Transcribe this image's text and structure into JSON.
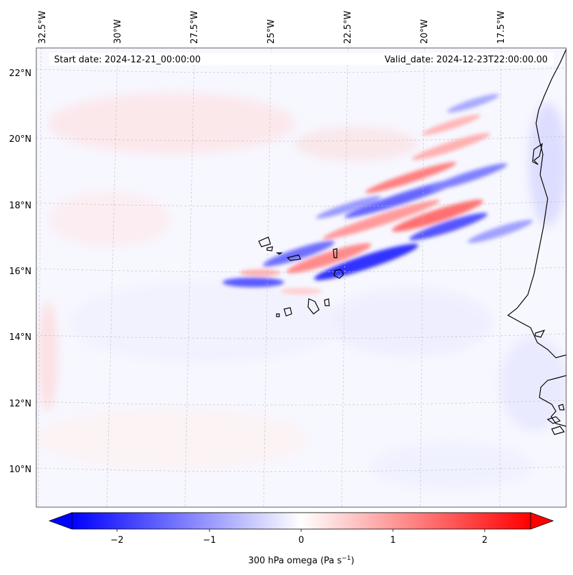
{
  "map": {
    "header": {
      "start_date": "Start date: 2024-12-21_00:00:00",
      "valid_date": "Valid_date: 2024-12-23T22:00:00.00"
    },
    "lon_labels": [
      "32.5°W",
      "30°W",
      "27.5°W",
      "25°W",
      "22.5°W",
      "20°W",
      "17.5°W"
    ],
    "lat_labels": [
      "22°N",
      "20°N",
      "18°N",
      "16°N",
      "14°N",
      "12°N",
      "10°N"
    ],
    "colorbar": {
      "label_main": "300 hPa omega (Pa s",
      "label_exp": "−1",
      "label_close": ")",
      "ticks": [
        "−2",
        "−1",
        "0",
        "1",
        "2"
      ],
      "range": [
        -2.6,
        2.6
      ],
      "colormap": "bwr",
      "extend": "both"
    },
    "colors": {
      "negative": "#0000ff",
      "neutral": "#ffffff",
      "positive": "#ff0000",
      "coastline": "#000000",
      "gridline": "#bbbbbb"
    }
  }
}
